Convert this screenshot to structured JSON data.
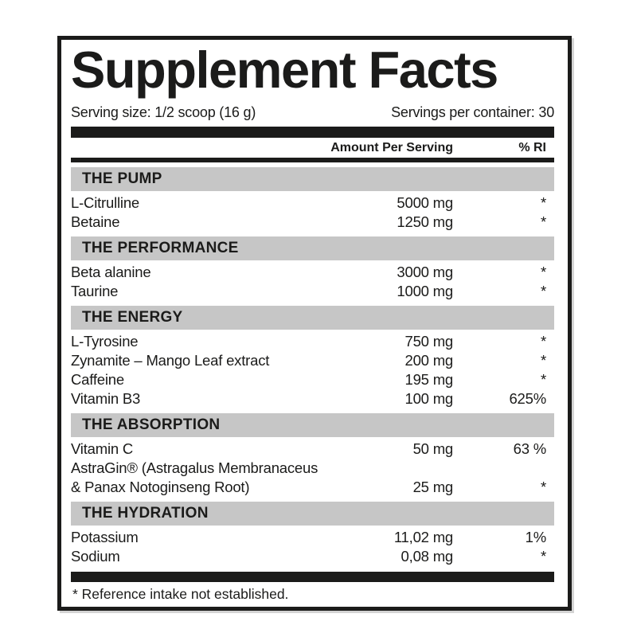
{
  "label": {
    "title": "Supplement Facts",
    "serving_size": "Serving size: 1/2 scoop (16 g)",
    "servings_per_container": "Servings per container: 30",
    "columns": {
      "amount": "Amount Per Serving",
      "ri": "% RI"
    },
    "sections": [
      {
        "name": "THE PUMP",
        "rows": [
          {
            "ingredient": "L-Citrulline",
            "amount": "5000 mg",
            "ri": "*"
          },
          {
            "ingredient": "Betaine",
            "amount": "1250 mg",
            "ri": "*"
          }
        ]
      },
      {
        "name": "THE PERFORMANCE",
        "rows": [
          {
            "ingredient": "Beta alanine",
            "amount": "3000 mg",
            "ri": "*"
          },
          {
            "ingredient": "Taurine",
            "amount": "1000 mg",
            "ri": "*"
          }
        ]
      },
      {
        "name": "THE ENERGY",
        "rows": [
          {
            "ingredient": "L-Tyrosine",
            "amount": "750 mg",
            "ri": "*"
          },
          {
            "ingredient": "Zynamite – Mango Leaf extract",
            "amount": "200 mg",
            "ri": "*"
          },
          {
            "ingredient": "Caffeine",
            "amount": "195 mg",
            "ri": "*"
          },
          {
            "ingredient": "Vitamin B3",
            "amount": "100 mg",
            "ri": "625%"
          }
        ]
      },
      {
        "name": "THE ABSORPTION",
        "rows": [
          {
            "ingredient": "Vitamin C",
            "amount": "50 mg",
            "ri": "63 %"
          },
          {
            "ingredient": "AstraGin® (Astragalus Membranaceus\n& Panax Notoginseng Root)",
            "amount": "25 mg",
            "ri": "*"
          }
        ]
      },
      {
        "name": "THE HYDRATION",
        "rows": [
          {
            "ingredient": "Potassium",
            "amount": "11,02 mg",
            "ri": "1%"
          },
          {
            "ingredient": "Sodium",
            "amount": "0,08 mg",
            "ri": "*"
          }
        ]
      }
    ],
    "footnote": "* Reference intake not established.",
    "colors": {
      "ink": "#1b1b1a",
      "section_band": "#c6c6c6",
      "background": "#ffffff"
    }
  }
}
